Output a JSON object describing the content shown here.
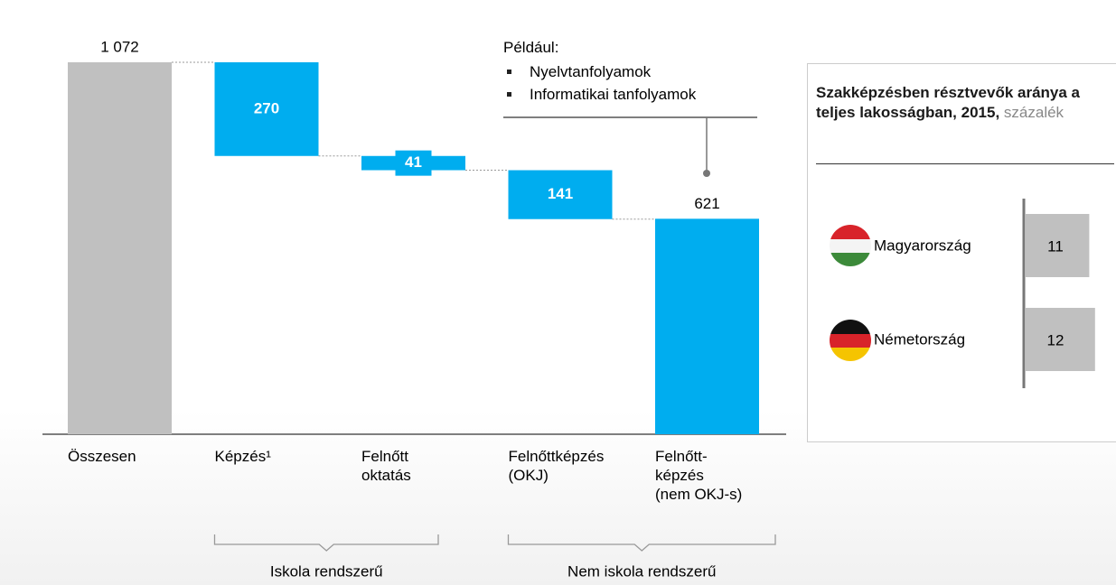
{
  "chart_data": [
    {
      "type": "waterfall",
      "categories": [
        "Összesen",
        "Képzés¹",
        "Felnőtt\noktatás",
        "Felnőttképzés\n(OKJ)",
        "Felnőtt-\nképzés\n(nem OKJ-s)"
      ],
      "values": [
        1072,
        270,
        41,
        141,
        621
      ],
      "value_labels": [
        "1 072",
        "270",
        "41",
        "141",
        "621"
      ],
      "measure": [
        "total",
        "relative",
        "relative",
        "relative",
        "total"
      ],
      "colors": [
        "#c0c0c0",
        "#00adef",
        "#00adef",
        "#00adef",
        "#00adef"
      ],
      "annotations": {
        "title": "Például:",
        "items": [
          "Nyelvtanfolyamok",
          "Informatikai tanfolyamok"
        ]
      },
      "groups": [
        {
          "label": "Iskola rendszerű",
          "from": 1,
          "to": 2
        },
        {
          "label": "Nem iskola rendszerű",
          "from": 3,
          "to": 4
        }
      ]
    },
    {
      "type": "hbar",
      "title": "Szakképzésben résztvevők aránya a teljes lakosságban, 2015,",
      "subtitle": "százalék",
      "categories": [
        "Magyarország",
        "Németország"
      ],
      "values": [
        11,
        12
      ],
      "color": "#c0c0c0"
    }
  ]
}
